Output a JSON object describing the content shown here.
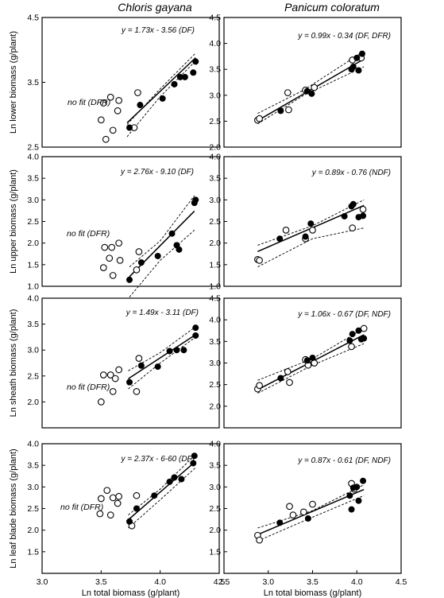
{
  "column_titles": [
    "Chloris gayana",
    "Panicum coloratum"
  ],
  "chart_data": [
    {
      "type": "scatter",
      "panel": "Chloris gayana - lower",
      "ylabel": "Ln lower biomass (g/plant)",
      "xlabel": "",
      "xlim": [
        3.0,
        4.5
      ],
      "ylim": [
        2.5,
        4.5
      ],
      "xticks": [],
      "yticks": [
        "2.5",
        "3.5",
        "4.5"
      ],
      "equation": "y = 1.73x - 3.56 (DF)",
      "no_fit": "no fit (DFR)",
      "fit": {
        "slope": 1.73,
        "intercept": -3.56,
        "x_range": [
          3.72,
          4.3
        ]
      },
      "conf_upper": [
        [
          3.72,
          2.85
        ],
        [
          4.0,
          3.4
        ],
        [
          4.3,
          3.95
        ]
      ],
      "conf_lower": [
        [
          3.72,
          2.66
        ],
        [
          4.0,
          3.28
        ],
        [
          4.3,
          3.83
        ]
      ],
      "open_points": [
        [
          3.5,
          2.92
        ],
        [
          3.52,
          3.18
        ],
        [
          3.54,
          2.62
        ],
        [
          3.58,
          3.27
        ],
        [
          3.6,
          2.76
        ],
        [
          3.64,
          3.06
        ],
        [
          3.65,
          3.22
        ],
        [
          3.78,
          2.8
        ],
        [
          3.81,
          3.34
        ]
      ],
      "filled_points": [
        [
          3.74,
          2.8
        ],
        [
          3.83,
          3.15
        ],
        [
          4.02,
          3.25
        ],
        [
          4.12,
          3.47
        ],
        [
          4.17,
          3.58
        ],
        [
          4.21,
          3.58
        ],
        [
          4.28,
          3.65
        ],
        [
          4.3,
          3.82
        ]
      ]
    },
    {
      "type": "scatter",
      "panel": "Panicum coloratum - lower",
      "ylabel": "",
      "xlabel": "",
      "xlim": [
        2.5,
        4.5
      ],
      "ylim": [
        2.0,
        4.5
      ],
      "xticks": [],
      "yticks": [
        "2.0",
        "2.5",
        "3.0",
        "3.5",
        "4.0",
        "4.5"
      ],
      "equation": "y = 0.99x - 0.34 (DF, DFR)",
      "no_fit": "",
      "fit": {
        "slope": 0.99,
        "intercept": -0.34,
        "x_range": [
          2.88,
          4.08
        ]
      },
      "conf_upper": [
        [
          2.88,
          2.65
        ],
        [
          3.4,
          3.1
        ],
        [
          4.08,
          3.85
        ]
      ],
      "conf_lower": [
        [
          2.88,
          2.45
        ],
        [
          3.4,
          3.0
        ],
        [
          4.08,
          3.55
        ]
      ],
      "open_points": [
        [
          2.88,
          2.52
        ],
        [
          2.9,
          2.55
        ],
        [
          3.22,
          3.05
        ],
        [
          3.23,
          2.72
        ],
        [
          3.42,
          3.1
        ],
        [
          3.52,
          3.15
        ],
        [
          3.95,
          3.68
        ],
        [
          4.05,
          3.72
        ]
      ],
      "filled_points": [
        [
          3.14,
          2.7
        ],
        [
          3.44,
          3.08
        ],
        [
          3.49,
          3.03
        ],
        [
          3.94,
          3.5
        ],
        [
          3.96,
          3.55
        ],
        [
          4.0,
          3.72
        ],
        [
          4.02,
          3.48
        ],
        [
          4.06,
          3.8
        ]
      ]
    },
    {
      "type": "scatter",
      "panel": "Chloris gayana - upper",
      "ylabel": "Ln upper biomass (g/plant)",
      "xlabel": "",
      "xlim": [
        3.0,
        4.5
      ],
      "ylim": [
        1.0,
        4.0
      ],
      "xticks": [],
      "yticks": [
        "1.0",
        "1.5",
        "2.0",
        "2.5",
        "3.0",
        "3.5",
        "4.0"
      ],
      "equation": "y = 2.76x - 9.10 (DF)",
      "no_fit": "no fit (DFR)",
      "fit": {
        "slope": 2.76,
        "intercept": -9.1,
        "x_range": [
          3.74,
          4.29
        ]
      },
      "conf_upper": [
        [
          3.74,
          1.45
        ],
        [
          4.0,
          2.05
        ],
        [
          4.29,
          3.1
        ]
      ],
      "conf_lower": [
        [
          3.74,
          0.75
        ],
        [
          4.0,
          1.6
        ],
        [
          4.29,
          2.3
        ]
      ],
      "open_points": [
        [
          3.52,
          1.43
        ],
        [
          3.53,
          1.9
        ],
        [
          3.57,
          1.65
        ],
        [
          3.59,
          1.9
        ],
        [
          3.6,
          1.25
        ],
        [
          3.65,
          2.0
        ],
        [
          3.66,
          1.6
        ],
        [
          3.8,
          1.38
        ],
        [
          3.82,
          1.8
        ]
      ],
      "filled_points": [
        [
          3.74,
          1.15
        ],
        [
          3.84,
          1.55
        ],
        [
          3.98,
          1.7
        ],
        [
          4.1,
          2.22
        ],
        [
          4.14,
          1.95
        ],
        [
          4.16,
          1.85
        ],
        [
          4.29,
          2.93
        ],
        [
          4.3,
          3.0
        ]
      ]
    },
    {
      "type": "scatter",
      "panel": "Panicum coloratum - upper",
      "ylabel": "",
      "xlabel": "",
      "xlim": [
        2.5,
        4.5
      ],
      "ylim": [
        1.0,
        4.0
      ],
      "xticks": [],
      "yticks": [
        "1.0",
        "1.5",
        "2.0",
        "2.5",
        "3.0",
        "3.5",
        "4.0"
      ],
      "equation": "y = 0.89x - 0.76 (NDF)",
      "no_fit": "",
      "fit": {
        "slope": 0.89,
        "intercept": -0.76,
        "x_range": [
          2.88,
          4.08
        ]
      },
      "conf_upper": [
        [
          2.88,
          1.95
        ],
        [
          3.5,
          2.4
        ],
        [
          4.08,
          3.0
        ]
      ],
      "conf_lower": [
        [
          2.88,
          1.45
        ],
        [
          3.5,
          2.1
        ],
        [
          4.08,
          2.35
        ]
      ],
      "open_points": [
        [
          2.88,
          1.62
        ],
        [
          2.9,
          1.6
        ],
        [
          3.2,
          2.3
        ],
        [
          3.42,
          2.1
        ],
        [
          3.5,
          2.3
        ],
        [
          3.95,
          2.35
        ],
        [
          4.07,
          2.78
        ]
      ],
      "filled_points": [
        [
          3.13,
          2.1
        ],
        [
          3.42,
          2.15
        ],
        [
          3.48,
          2.45
        ],
        [
          3.86,
          2.62
        ],
        [
          3.94,
          2.85
        ],
        [
          3.96,
          2.9
        ],
        [
          4.02,
          2.6
        ],
        [
          4.07,
          2.63
        ]
      ]
    },
    {
      "type": "scatter",
      "panel": "Chloris gayana - sheath",
      "ylabel": "Ln sheath biomass (g/plant)",
      "xlabel": "",
      "xlim": [
        3.0,
        4.5
      ],
      "ylim": [
        1.5,
        4.0
      ],
      "xticks": [],
      "yticks": [
        "2.0",
        "2.5",
        "3.0",
        "3.5",
        "4.0"
      ],
      "equation": "y = 1.49x - 3.11 (DF)",
      "no_fit": "no fit (DFR)",
      "fit": {
        "slope": 1.49,
        "intercept": -3.11,
        "x_range": [
          3.73,
          4.3
        ]
      },
      "conf_upper": [
        [
          3.73,
          2.6
        ],
        [
          4.0,
          2.95
        ],
        [
          4.3,
          3.45
        ]
      ],
      "conf_lower": [
        [
          3.73,
          2.25
        ],
        [
          4.0,
          2.75
        ],
        [
          4.3,
          3.25
        ]
      ],
      "open_points": [
        [
          3.5,
          2.0
        ],
        [
          3.52,
          2.52
        ],
        [
          3.58,
          2.52
        ],
        [
          3.6,
          2.2
        ],
        [
          3.62,
          2.45
        ],
        [
          3.65,
          2.62
        ],
        [
          3.8,
          2.2
        ],
        [
          3.82,
          2.84
        ]
      ],
      "filled_points": [
        [
          3.74,
          2.38
        ],
        [
          3.84,
          2.7
        ],
        [
          3.98,
          2.68
        ],
        [
          4.08,
          2.98
        ],
        [
          4.14,
          3.0
        ],
        [
          4.2,
          3.0
        ],
        [
          4.3,
          3.28
        ],
        [
          4.3,
          3.43
        ]
      ]
    },
    {
      "type": "scatter",
      "panel": "Panicum coloratum - sheath",
      "ylabel": "",
      "xlabel": "",
      "xlim": [
        2.5,
        4.5
      ],
      "ylim": [
        1.5,
        4.5
      ],
      "xticks": [],
      "yticks": [
        "2.0",
        "2.5",
        "3.0",
        "3.5",
        "4.0",
        "4.5"
      ],
      "equation": "y = 1.06x - 0.67 (DF, NDF)",
      "no_fit": "",
      "fit": {
        "slope": 1.06,
        "intercept": -0.67,
        "x_range": [
          2.88,
          4.08
        ]
      },
      "conf_upper": [
        [
          2.88,
          2.6
        ],
        [
          3.5,
          3.1
        ],
        [
          4.08,
          3.8
        ]
      ],
      "conf_lower": [
        [
          2.88,
          2.3
        ],
        [
          3.5,
          2.95
        ],
        [
          4.08,
          3.45
        ]
      ],
      "open_points": [
        [
          2.88,
          2.4
        ],
        [
          2.9,
          2.48
        ],
        [
          3.22,
          2.8
        ],
        [
          3.24,
          2.55
        ],
        [
          3.42,
          3.08
        ],
        [
          3.45,
          2.95
        ],
        [
          3.52,
          3.0
        ],
        [
          3.94,
          3.38
        ],
        [
          4.08,
          3.8
        ]
      ],
      "filled_points": [
        [
          3.14,
          2.65
        ],
        [
          3.44,
          3.06
        ],
        [
          3.5,
          3.12
        ],
        [
          3.92,
          3.52
        ],
        [
          3.95,
          3.67
        ],
        [
          4.02,
          3.75
        ],
        [
          4.05,
          3.55
        ],
        [
          4.08,
          3.57
        ]
      ]
    },
    {
      "type": "scatter",
      "panel": "Chloris gayana - leaf blade",
      "ylabel": "Ln leaf blade biomass (g/plant)",
      "xlabel": "Ln total biomass (g/plant)",
      "xlim": [
        3.0,
        4.5
      ],
      "ylim": [
        1.0,
        4.0
      ],
      "xticks": [
        "3.0",
        "3.5",
        "4.0",
        "4.5"
      ],
      "yticks": [
        "1.5",
        "2.0",
        "2.5",
        "3.0",
        "3.5",
        "4.0"
      ],
      "equation": "y = 2.37x - 6-60 (DF)",
      "no_fit": "no fit (DFR)",
      "fit": {
        "slope": 2.37,
        "intercept": -6.6,
        "x_range": [
          3.73,
          4.3
        ]
      },
      "conf_upper": [
        [
          3.73,
          2.35
        ],
        [
          4.0,
          2.95
        ],
        [
          4.3,
          3.75
        ]
      ],
      "conf_lower": [
        [
          3.73,
          2.05
        ],
        [
          4.0,
          2.7
        ],
        [
          4.3,
          3.45
        ]
      ],
      "open_points": [
        [
          3.49,
          2.38
        ],
        [
          3.5,
          2.73
        ],
        [
          3.55,
          2.92
        ],
        [
          3.58,
          2.35
        ],
        [
          3.6,
          2.75
        ],
        [
          3.64,
          2.62
        ],
        [
          3.65,
          2.78
        ],
        [
          3.76,
          2.1
        ],
        [
          3.8,
          2.8
        ]
      ],
      "filled_points": [
        [
          3.74,
          2.2
        ],
        [
          3.8,
          2.5
        ],
        [
          3.95,
          2.8
        ],
        [
          4.08,
          3.12
        ],
        [
          4.12,
          3.22
        ],
        [
          4.18,
          3.18
        ],
        [
          4.28,
          3.55
        ],
        [
          4.29,
          3.72
        ]
      ]
    },
    {
      "type": "scatter",
      "panel": "Panicum coloratum - leaf blade",
      "ylabel": "",
      "xlabel": "Ln total biomass (g/plant)",
      "xlim": [
        2.5,
        4.5
      ],
      "ylim": [
        1.0,
        4.0
      ],
      "xticks": [
        "2.5",
        "3.0",
        "3.5",
        "4.0",
        "4.5"
      ],
      "yticks": [
        "1.5",
        "2.0",
        "2.5",
        "3.0",
        "3.5",
        "4.0"
      ],
      "equation": "y = 0.87x - 0.61 (DF, NDF)",
      "no_fit": "",
      "fit": {
        "slope": 0.87,
        "intercept": -0.61,
        "x_range": [
          2.88,
          4.08
        ]
      },
      "conf_upper": [
        [
          2.88,
          2.05
        ],
        [
          3.5,
          2.45
        ],
        [
          4.08,
          3.05
        ]
      ],
      "conf_lower": [
        [
          2.88,
          1.75
        ],
        [
          3.5,
          2.3
        ],
        [
          4.08,
          2.8
        ]
      ],
      "open_points": [
        [
          2.88,
          1.88
        ],
        [
          2.9,
          1.77
        ],
        [
          3.24,
          2.55
        ],
        [
          3.28,
          2.35
        ],
        [
          3.4,
          2.42
        ],
        [
          3.5,
          2.6
        ],
        [
          3.94,
          3.08
        ],
        [
          3.97,
          2.95
        ]
      ],
      "filled_points": [
        [
          3.13,
          2.17
        ],
        [
          3.45,
          2.27
        ],
        [
          3.92,
          2.8
        ],
        [
          3.94,
          2.48
        ],
        [
          3.96,
          2.98
        ],
        [
          4.0,
          3.0
        ],
        [
          4.02,
          2.68
        ],
        [
          4.07,
          3.14
        ]
      ]
    }
  ]
}
